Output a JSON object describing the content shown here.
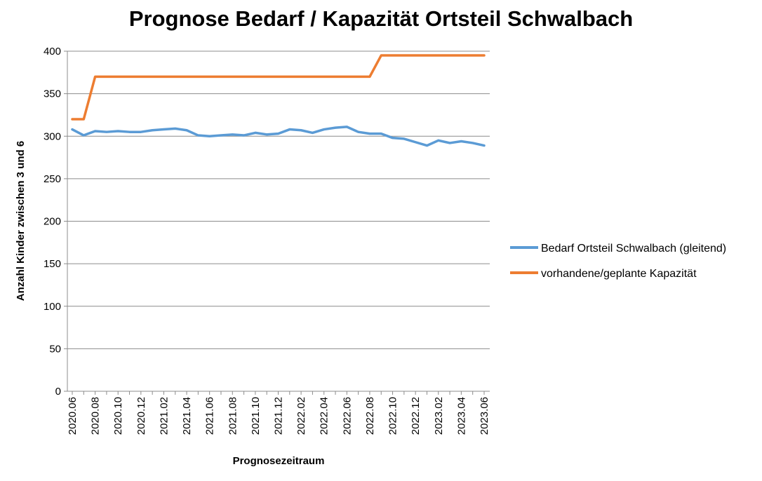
{
  "chart_data": {
    "type": "line",
    "title": "Prognose Bedarf / Kapazität Ortsteil Schwalbach",
    "xlabel": "Prognosezeitraum",
    "ylabel": "Anzahl Kinder zwischen 3 und 6",
    "ylim": [
      0,
      400
    ],
    "yticks": [
      0,
      50,
      100,
      150,
      200,
      250,
      300,
      350,
      400
    ],
    "x": [
      "2020.06",
      "2020.07",
      "2020.08",
      "2020.09",
      "2020.10",
      "2020.11",
      "2020.12",
      "2021.01",
      "2021.02",
      "2021.03",
      "2021.04",
      "2021.05",
      "2021.06",
      "2021.07",
      "2021.08",
      "2021.09",
      "2021.10",
      "2021.11",
      "2021.12",
      "2022.01",
      "2022.02",
      "2022.03",
      "2022.04",
      "2022.05",
      "2022.06",
      "2022.07",
      "2022.08",
      "2022.09",
      "2022.10",
      "2022.11",
      "2022.12",
      "2023.01",
      "2023.02",
      "2023.03",
      "2023.04",
      "2023.05",
      "2023.06"
    ],
    "xtick_labels": [
      "2020.06",
      "2020.08",
      "2020.10",
      "2020.12",
      "2021.02",
      "2021.04",
      "2021.06",
      "2021.08",
      "2021.10",
      "2021.12",
      "2022.02",
      "2022.04",
      "2022.06",
      "2022.08",
      "2022.10",
      "2022.12",
      "2023.02",
      "2023.04",
      "2023.06"
    ],
    "grid": true,
    "legend_position": "right",
    "series": [
      {
        "name": "Bedarf Ortsteil Schwalbach (gleitend)",
        "color": "#5b9bd5",
        "values": [
          308,
          301,
          306,
          305,
          306,
          305,
          305,
          307,
          308,
          309,
          307,
          301,
          300,
          301,
          302,
          301,
          304,
          302,
          303,
          308,
          307,
          304,
          308,
          310,
          311,
          305,
          303,
          303,
          298,
          297,
          293,
          289,
          295,
          292,
          294,
          292,
          289
        ]
      },
      {
        "name": "vorhandene/geplante Kapazität",
        "color": "#ed7d31",
        "values": [
          320,
          320,
          370,
          370,
          370,
          370,
          370,
          370,
          370,
          370,
          370,
          370,
          370,
          370,
          370,
          370,
          370,
          370,
          370,
          370,
          370,
          370,
          370,
          370,
          370,
          370,
          370,
          395,
          395,
          395,
          395,
          395,
          395,
          395,
          395,
          395,
          395
        ]
      }
    ]
  }
}
